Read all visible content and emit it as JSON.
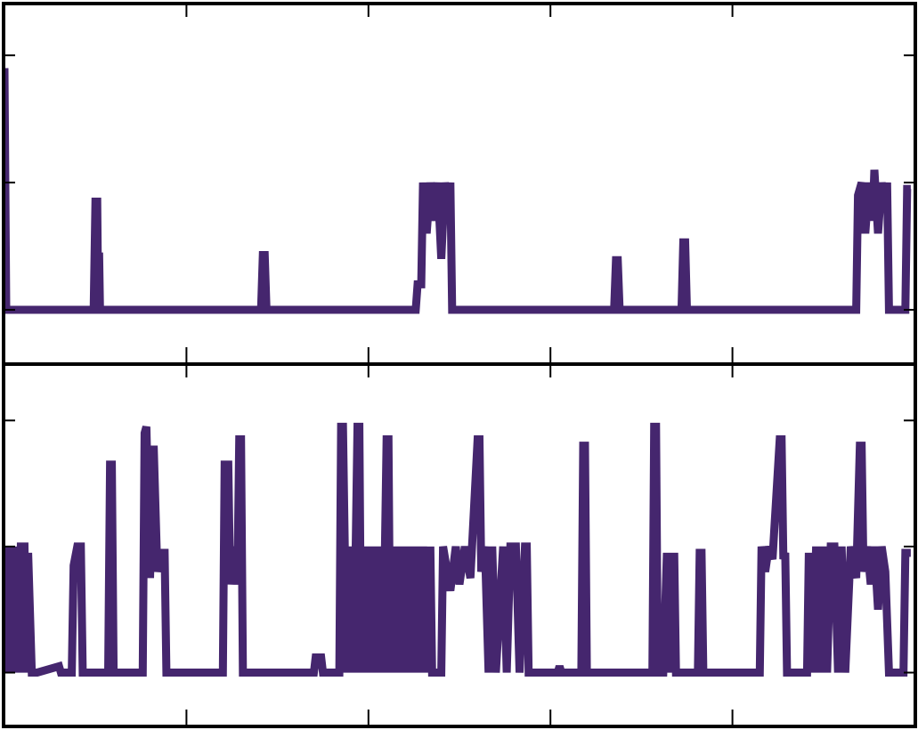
{
  "chart_data": [
    {
      "type": "line",
      "color": "#45266e",
      "x": [
        0,
        0.01,
        0.49,
        0.5,
        0.51,
        0.515,
        0.52,
        0.525,
        1.41,
        1.42,
        1.43,
        1.44,
        2.26,
        2.27,
        2.29,
        2.3,
        2.32,
        2.34,
        2.36,
        2.38,
        2.4,
        2.42,
        2.44,
        2.45,
        2.46,
        3.35,
        3.36,
        3.37,
        3.38,
        3.72,
        3.73,
        3.74,
        3.75,
        4.68,
        4.69,
        4.71,
        4.73,
        4.75,
        4.77,
        4.78,
        4.8,
        4.82,
        4.84,
        4.85,
        4.86,
        4.95,
        4.96,
        4.98
      ],
      "values": [
        1.9,
        0,
        0,
        0.85,
        0.85,
        0,
        0.45,
        0,
        0,
        0.43,
        0.43,
        0,
        0,
        0.2,
        0.2,
        1.0,
        0.6,
        1.0,
        0.7,
        1.0,
        0.4,
        1.0,
        0.8,
        1.0,
        0,
        0,
        0.39,
        0.39,
        0,
        0,
        0.53,
        0.53,
        0,
        0,
        0.9,
        1.0,
        0.6,
        1.0,
        0.7,
        1.1,
        0.6,
        1.0,
        0.8,
        1.0,
        0,
        0,
        0.95,
        0.95
      ],
      "xlim": [
        0,
        5
      ],
      "xticks": [
        1,
        2,
        3,
        4
      ],
      "ylim": [
        -0.42,
        2.4
      ],
      "yticks": [
        0,
        1,
        2
      ]
    },
    {
      "type": "line",
      "color": "#45266e",
      "x": [
        0,
        0.02,
        0.03,
        0.05,
        0.06,
        0.08,
        0.09,
        0.11,
        0.12,
        0.13,
        0.15,
        0.18,
        0.3,
        0.31,
        0.37,
        0.38,
        0.4,
        0.42,
        0.43,
        0.57,
        0.58,
        0.59,
        0.6,
        0.76,
        0.77,
        0.78,
        0.8,
        0.82,
        0.84,
        0.86,
        0.88,
        0.89,
        1.2,
        1.21,
        1.23,
        1.24,
        1.26,
        1.28,
        1.29,
        1.3,
        1.31,
        1.7,
        1.71,
        1.74,
        1.75,
        1.84,
        1.85,
        1.86,
        1.87,
        1.88,
        1.9,
        1.92,
        1.94,
        1.95,
        1.96,
        1.98,
        2.0,
        2.02,
        2.04,
        2.06,
        2.08,
        2.1,
        2.11,
        2.12,
        2.14,
        2.16,
        2.18,
        2.2,
        2.22,
        2.24,
        2.26,
        2.28,
        2.3,
        2.32,
        2.34,
        2.35,
        2.4,
        2.41,
        2.45,
        2.48,
        2.5,
        2.53,
        2.56,
        2.6,
        2.61,
        2.62,
        2.64,
        2.66,
        2.68,
        2.7,
        2.74,
        2.76,
        2.78,
        2.81,
        2.83,
        2.86,
        2.87,
        2.88,
        3.04,
        3.05,
        3.06,
        3.17,
        3.18,
        3.19,
        3.2,
        3.56,
        3.57,
        3.58,
        3.59,
        3.62,
        3.64,
        3.66,
        3.68,
        3.69,
        3.81,
        3.82,
        3.83,
        3.84,
        4.15,
        4.16,
        4.18,
        4.2,
        4.22,
        4.26,
        4.27,
        4.28,
        4.29,
        4.3,
        4.41,
        4.42,
        4.44,
        4.46,
        4.48,
        4.5,
        4.52,
        4.54,
        4.56,
        4.58,
        4.6,
        4.62,
        4.65,
        4.68,
        4.7,
        4.71,
        4.72,
        4.74,
        4.76,
        4.78,
        4.8,
        4.82,
        4.84,
        4.86,
        4.94,
        4.95,
        4.98
      ],
      "values": [
        1,
        0,
        1,
        0,
        1,
        0,
        1,
        1,
        0,
        0.95,
        0,
        0,
        0.05,
        0,
        0,
        0.85,
        1,
        1,
        0,
        0,
        1.65,
        1.65,
        0,
        0,
        1.9,
        1.95,
        0.75,
        1.8,
        0.8,
        0.95,
        0.95,
        0,
        0,
        1.65,
        1.65,
        0.7,
        1,
        0.7,
        1.85,
        1.85,
        0,
        0,
        0.12,
        0.12,
        0,
        0,
        1.95,
        1.95,
        1,
        0,
        1,
        0,
        1.95,
        1.95,
        0,
        1,
        0,
        1,
        0,
        1,
        0,
        1.85,
        1.85,
        0,
        1,
        0,
        1,
        0,
        1,
        0,
        1,
        0,
        1,
        0,
        1,
        0,
        0,
        1,
        0.65,
        1,
        0.7,
        1,
        0.75,
        1.85,
        1.85,
        0.8,
        1,
        0,
        1,
        0,
        1,
        0,
        1,
        1,
        0,
        1,
        1,
        0,
        0,
        0.05,
        0,
        0,
        1.8,
        1.8,
        0,
        0,
        1.95,
        1.95,
        0,
        0,
        0.95,
        0,
        0.95,
        0,
        0,
        0.95,
        0.95,
        0,
        0,
        1,
        0.8,
        1,
        0.9,
        1.85,
        1.85,
        0.9,
        0.95,
        0,
        0,
        0.95,
        0,
        1,
        0,
        1,
        0,
        1,
        1,
        0,
        1,
        0,
        1,
        0.75,
        1.8,
        1.8,
        0.8,
        1,
        0.7,
        1,
        0.5,
        1,
        0.8,
        0,
        0,
        0.95,
        0.95
      ],
      "xlim": [
        0,
        5
      ],
      "xticks": [
        1,
        2,
        3,
        4
      ],
      "ylim": [
        -0.42,
        2.44
      ],
      "yticks": [
        0,
        1,
        2
      ]
    }
  ]
}
